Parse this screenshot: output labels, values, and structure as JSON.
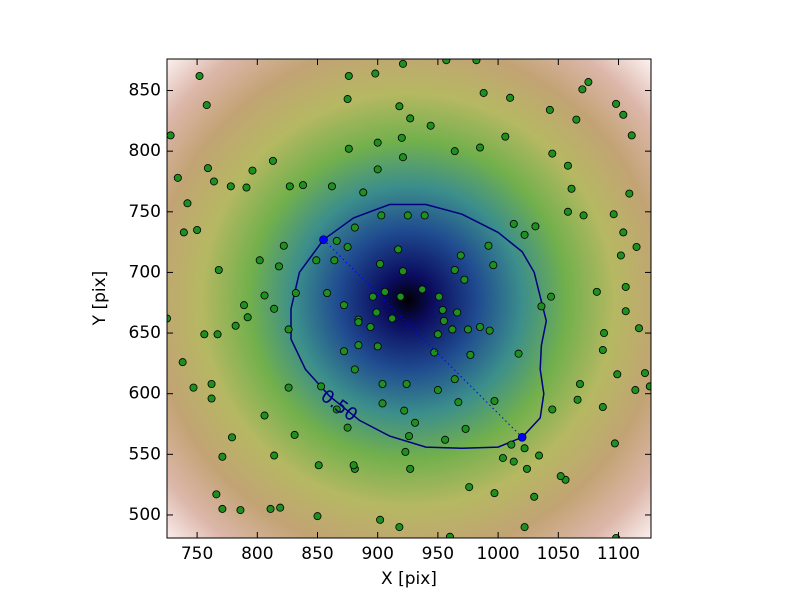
{
  "chart_data": {
    "type": "scatter",
    "x_label": "X [pix]",
    "y_label": "Y [pix]",
    "xlim": [
      725,
      1127
    ],
    "ylim": [
      481,
      876
    ],
    "xticks": [
      750,
      800,
      850,
      900,
      950,
      1000,
      1050,
      1100
    ],
    "yticks": [
      500,
      550,
      600,
      650,
      700,
      750,
      800,
      850
    ],
    "color": "#1f8f1f",
    "x": [
      752,
      728,
      734,
      739,
      750,
      742,
      764,
      759,
      758,
      778,
      791,
      796,
      813,
      827,
      838,
      862,
      875,
      876,
      898,
      921,
      957,
      982,
      918,
      927,
      944,
      920,
      900,
      876,
      900,
      921,
      964,
      985,
      988,
      1010,
      1006,
      1043,
      1065,
      1070,
      1075,
      1098,
      1104,
      1111,
      1045,
      1058,
      1061,
      1058,
      1071,
      1096,
      1104,
      1109,
      1115,
      1102,
      1082,
      1106,
      1106,
      1088,
      1087,
      1099,
      1114,
      1126,
      1122,
      1068,
      1066,
      1045,
      1044,
      1036,
      1017,
      1031,
      1013,
      1022,
      992,
      996,
      969,
      964,
      972,
      939,
      925,
      903,
      888,
      881,
      866,
      875,
      864,
      849,
      872,
      896,
      906,
      899,
      912,
      919,
      921,
      917,
      902,
      937,
      951,
      954,
      950,
      962,
      975,
      985,
      993,
      966,
      955,
      884,
      884,
      900,
      884,
      894,
      872,
      881,
      904,
      924,
      947,
      977,
      964,
      950,
      967,
      997,
      904,
      922,
      931,
      926,
      956,
      973,
      1011,
      1022,
      1013,
      1024,
      1034,
      1004,
      997,
      976,
      1030,
      1056,
      1022,
      960,
      918,
      902,
      881,
      880,
      850,
      851,
      923,
      927,
      875,
      866,
      853,
      826,
      831,
      814,
      806,
      819,
      811,
      771,
      779,
      786,
      766,
      771,
      762,
      762,
      747,
      738,
      725,
      756,
      767,
      782,
      789,
      792,
      814,
      806,
      802,
      768,
      822,
      818,
      826,
      832,
      858,
      1098,
      1097,
      1052,
      1087,
      1117
    ],
    "values": [
      862,
      813,
      778,
      733,
      735,
      757,
      775,
      786,
      838,
      771,
      770,
      784,
      792,
      771,
      772,
      771,
      843,
      862,
      864,
      872,
      875,
      875,
      837,
      827,
      821,
      811,
      807,
      802,
      785,
      795,
      800,
      803,
      848,
      844,
      812,
      834,
      826,
      851,
      857,
      839,
      830,
      813,
      798,
      788,
      769,
      750,
      747,
      748,
      733,
      765,
      721,
      714,
      684,
      688,
      668,
      650,
      636,
      616,
      603,
      606,
      617,
      608,
      595,
      587,
      680,
      672,
      633,
      738,
      740,
      731,
      722,
      706,
      714,
      702,
      694,
      747,
      747,
      747,
      766,
      737,
      726,
      721,
      710,
      710,
      673,
      680,
      684,
      667,
      662,
      680,
      701,
      719,
      707,
      686,
      680,
      669,
      649,
      653,
      653,
      655,
      652,
      667,
      660,
      661,
      640,
      639,
      659,
      655,
      635,
      620,
      608,
      608,
      634,
      632,
      612,
      603,
      593,
      594,
      592,
      586,
      576,
      565,
      562,
      571,
      558,
      555,
      544,
      538,
      549,
      547,
      518,
      523,
      515,
      529,
      490,
      482,
      490,
      496,
      538,
      541,
      499,
      541,
      552,
      538,
      572,
      587,
      606,
      605,
      566,
      549,
      582,
      506,
      505,
      548,
      564,
      504,
      517,
      505,
      608,
      596,
      605,
      626,
      662,
      649,
      649,
      656,
      673,
      663,
      670,
      681,
      710,
      702,
      722,
      705,
      653,
      683,
      683,
      481,
      559,
      532,
      589,
      654
    ],
    "contour": {
      "label": "0.50",
      "color": "#000080",
      "x": [
        855,
        880,
        910,
        940,
        970,
        1000,
        1020,
        1030,
        1035,
        1040,
        1036,
        1035,
        1038,
        1035,
        1020,
        1000,
        970,
        940,
        910,
        885,
        860,
        840,
        828,
        828,
        835,
        855
      ],
      "y": [
        727,
        745,
        756,
        756,
        748,
        733,
        717,
        700,
        680,
        660,
        640,
        620,
        600,
        580,
        564,
        556,
        555,
        556,
        565,
        578,
        598,
        620,
        645,
        670,
        700,
        727
      ]
    },
    "segment": {
      "color": "#0000ff",
      "x": [
        855,
        1020
      ],
      "y": [
        727,
        564
      ]
    }
  }
}
